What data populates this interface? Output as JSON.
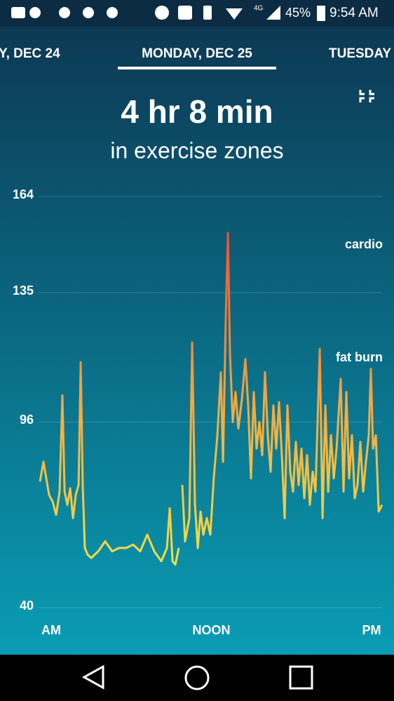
{
  "status_bar": {
    "network": "4G",
    "battery": "45%",
    "time": "9:54 AM"
  },
  "tabs": {
    "previous": "Y, DEC 24",
    "current": "MONDAY, DEC 25",
    "next": "TUESDAY"
  },
  "chart_data": {
    "type": "line",
    "title": "4 hr 8 min",
    "subtitle": "in exercise zones",
    "annotations": [
      "cardio",
      "fat burn"
    ],
    "ylim": [
      40,
      164
    ],
    "yticks": [
      40,
      96,
      135,
      164
    ],
    "xlim": [
      -1,
      25
    ],
    "xticks": [
      {
        "value": 0,
        "label": "AM"
      },
      {
        "value": 12,
        "label": "NOON"
      },
      {
        "value": 24,
        "label": "PM"
      }
    ],
    "grid": true,
    "line_gradient": [
      "#f7dc45",
      "#f5a540",
      "#e8503a"
    ],
    "x": [
      -0.84,
      -0.58,
      -0.37,
      -0.16,
      0.11,
      0.37,
      0.63,
      0.84,
      1.0,
      1.21,
      1.42,
      1.63,
      1.84,
      2.05,
      2.21,
      2.36,
      2.52,
      2.73,
      3.0,
      3.52,
      4.04,
      4.57,
      5.09,
      5.62,
      6.14,
      6.67,
      7.2,
      7.72,
      8.25,
      8.67,
      8.88,
      9.09,
      9.3,
      9.56,
      9.7,
      9.82,
      10.03,
      10.35,
      10.56,
      10.77,
      10.98,
      11.19,
      11.4,
      11.66,
      11.92,
      12.18,
      12.45,
      12.71,
      12.87,
      13.08,
      13.24,
      13.39,
      13.6,
      13.81,
      14.02,
      14.29,
      14.55,
      14.76,
      14.97,
      15.18,
      15.39,
      15.6,
      15.81,
      16.02,
      16.23,
      16.44,
      16.65,
      16.86,
      17.07,
      17.28,
      17.49,
      17.7,
      17.91,
      18.12,
      18.33,
      18.54,
      18.75,
      18.96,
      19.17,
      19.38,
      19.59,
      19.8,
      20.12,
      20.33,
      20.54,
      20.75,
      20.96,
      21.17,
      21.38,
      21.69,
      21.9,
      22.11,
      22.32,
      22.53,
      22.74,
      22.95,
      23.16,
      23.37,
      23.58,
      23.79,
      23.95,
      24.11,
      24.32,
      24.53,
      24.79
    ],
    "series": [
      {
        "values": [
          78,
          84,
          79,
          74,
          72,
          68,
          75,
          104,
          75,
          71,
          76,
          67,
          74,
          77,
          114,
          77,
          58,
          56,
          55,
          57,
          60,
          57,
          58,
          58,
          59,
          57,
          62,
          57,
          54,
          58,
          70,
          54,
          53,
          58,
          null,
          77,
          60,
          67,
          120,
          71,
          58,
          69,
          62,
          67,
          62,
          79,
          92,
          111,
          84,
          128,
          153,
          117,
          96,
          105,
          94,
          103,
          115,
          101,
          79,
          105,
          88,
          96,
          86,
          111,
          92,
          81,
          101,
          88,
          102,
          86,
          67,
          101,
          81,
          75,
          90,
          77,
          88,
          73,
          86,
          71,
          81,
          75,
          118,
          67,
          101,
          75,
          92,
          79,
          88,
          109,
          75,
          105,
          79,
          92,
          73,
          77,
          90,
          75,
          84,
          92,
          112,
          88,
          92,
          69,
          71
        ]
      }
    ]
  }
}
